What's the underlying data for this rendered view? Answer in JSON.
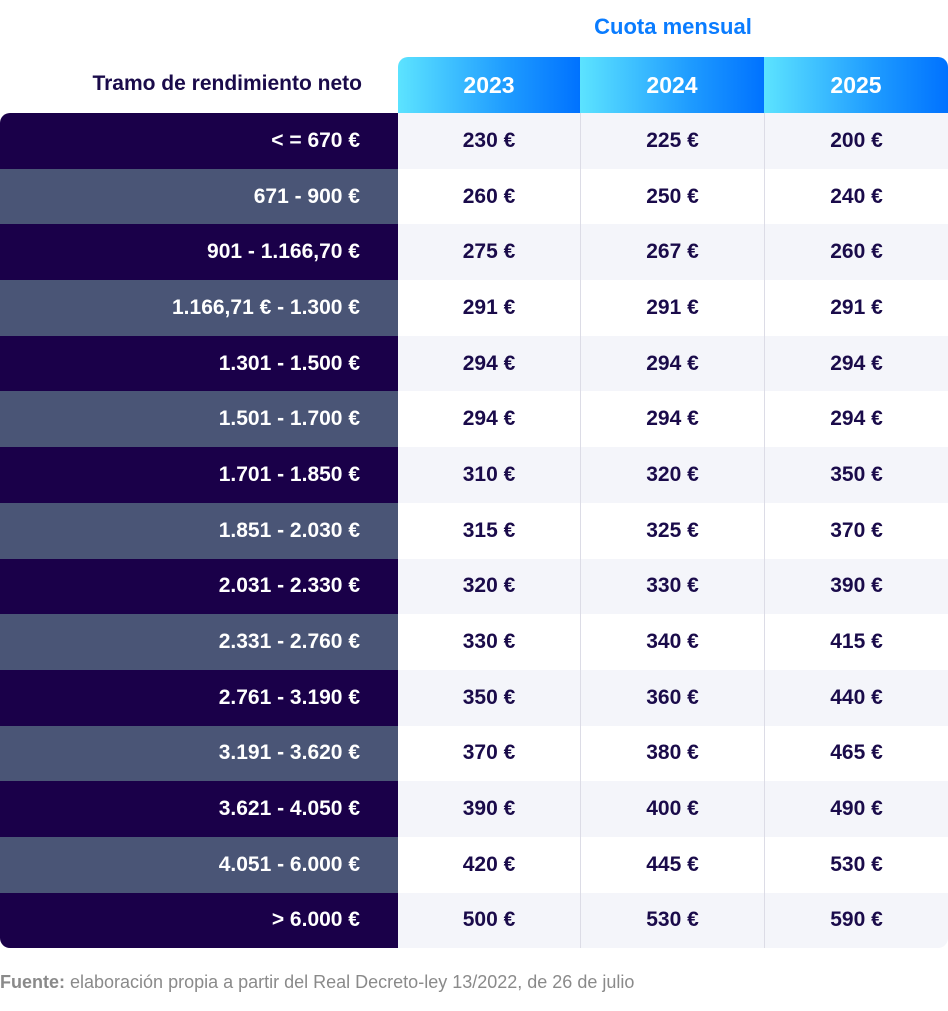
{
  "chart_data": {
    "type": "table",
    "title": "Cuota mensual",
    "row_header": "Tramo de rendimiento neto",
    "columns": [
      "2023",
      "2024",
      "2025"
    ],
    "rows": [
      {
        "label": "< = 670 €",
        "values": [
          "230 €",
          "225 €",
          "200 €"
        ]
      },
      {
        "label": "671 - 900 €",
        "values": [
          "260 €",
          "250 €",
          "240 €"
        ]
      },
      {
        "label": "901 - 1.166,70  €",
        "values": [
          "275 €",
          "267 €",
          "260 €"
        ]
      },
      {
        "label": "1.166,71 € - 1.300 €",
        "values": [
          "291 €",
          "291 €",
          "291 €"
        ]
      },
      {
        "label": "1.301 - 1.500 €",
        "values": [
          "294 €",
          "294 €",
          "294 €"
        ]
      },
      {
        "label": "1.501 - 1.700 €",
        "values": [
          "294 €",
          "294 €",
          "294 €"
        ]
      },
      {
        "label": "1.701 - 1.850 €",
        "values": [
          "310 €",
          "320 €",
          "350 €"
        ]
      },
      {
        "label": "1.851 - 2.030 €",
        "values": [
          "315 €",
          "325 €",
          "370 €"
        ]
      },
      {
        "label": "2.031 - 2.330 €",
        "values": [
          "320 €",
          "330 €",
          "390 €"
        ]
      },
      {
        "label": "2.331 - 2.760 €",
        "values": [
          "330 €",
          "340 €",
          "415 €"
        ]
      },
      {
        "label": "2.761 - 3.190 €",
        "values": [
          "350 €",
          "360 €",
          "440 €"
        ]
      },
      {
        "label": "3.191 - 3.620 €",
        "values": [
          "370 €",
          "380 €",
          "465 €"
        ]
      },
      {
        "label": "3.621 - 4.050 €",
        "values": [
          "390 €",
          "400 €",
          "490 €"
        ]
      },
      {
        "label": "4.051 - 6.000 €",
        "values": [
          "420 €",
          "445 €",
          "530 €"
        ]
      },
      {
        "label": "> 6.000 €",
        "values": [
          "500 €",
          "530 €",
          "590 €"
        ]
      }
    ],
    "colors": {
      "title": "#0a7cff",
      "dark_row": "#1a0049",
      "light_row": "#4a5576",
      "header_gradient": [
        "#5ce3ff",
        "#0072ff"
      ]
    }
  },
  "footer": {
    "source_label": "Fuente:",
    "source_text": " elaboración propia a partir del Real Decreto-ley 13/2022, de 26 de julio"
  }
}
